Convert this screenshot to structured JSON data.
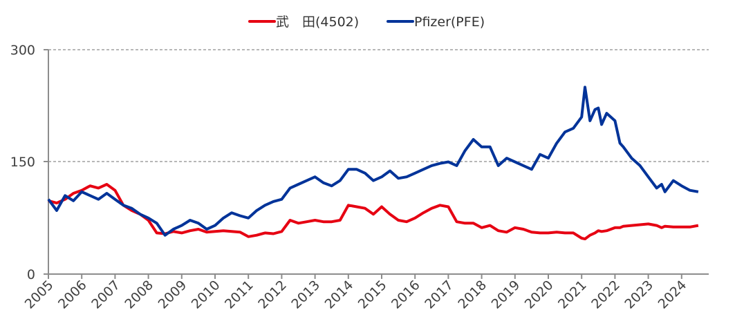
{
  "chart_data": {
    "type": "line",
    "title": "",
    "xlabel": "",
    "ylabel": "",
    "ylim": [
      0,
      300
    ],
    "yticks": [
      0,
      150,
      300
    ],
    "xticks": [
      "2005",
      "2006",
      "2007",
      "2008",
      "2009",
      "2010",
      "2011",
      "2012",
      "2013",
      "2014",
      "2015",
      "2016",
      "2017",
      "2018",
      "2019",
      "2020",
      "2021",
      "2022",
      "2023",
      "2024"
    ],
    "grid": "horizontal dashed at 150 and 300",
    "legend_position": "top-center",
    "colors": {
      "takeda": "#e60012",
      "pfizer": "#003399",
      "axis": "#8c8c8c",
      "grid": "#8c8c8c"
    },
    "x": [
      2005.0,
      2005.25,
      2005.5,
      2005.75,
      2006.0,
      2006.25,
      2006.5,
      2006.75,
      2007.0,
      2007.25,
      2007.5,
      2007.75,
      2008.0,
      2008.25,
      2008.5,
      2008.75,
      2009.0,
      2009.25,
      2009.5,
      2009.75,
      2010.0,
      2010.25,
      2010.5,
      2010.75,
      2011.0,
      2011.25,
      2011.5,
      2011.75,
      2012.0,
      2012.25,
      2012.5,
      2012.75,
      2013.0,
      2013.25,
      2013.5,
      2013.75,
      2014.0,
      2014.25,
      2014.5,
      2014.75,
      2015.0,
      2015.25,
      2015.5,
      2015.75,
      2016.0,
      2016.25,
      2016.5,
      2016.75,
      2017.0,
      2017.25,
      2017.5,
      2017.75,
      2018.0,
      2018.25,
      2018.5,
      2018.75,
      2019.0,
      2019.25,
      2019.5,
      2019.75,
      2020.0,
      2020.25,
      2020.5,
      2020.75,
      2021.0,
      2021.1,
      2021.25,
      2021.4,
      2021.5,
      2021.6,
      2021.75,
      2022.0,
      2022.15,
      2022.25,
      2022.5,
      2022.75,
      2023.0,
      2023.25,
      2023.4,
      2023.5,
      2023.75,
      2024.0,
      2024.25,
      2024.5
    ],
    "series": [
      {
        "name": "武　田(4502)",
        "values": [
          98,
          95,
          100,
          108,
          112,
          118,
          115,
          120,
          112,
          92,
          85,
          80,
          72,
          55,
          54,
          57,
          55,
          58,
          60,
          56,
          57,
          58,
          57,
          56,
          50,
          52,
          55,
          54,
          57,
          72,
          68,
          70,
          72,
          70,
          70,
          72,
          92,
          90,
          88,
          80,
          90,
          80,
          72,
          70,
          75,
          82,
          88,
          92,
          90,
          70,
          68,
          68,
          62,
          65,
          58,
          56,
          62,
          60,
          56,
          55,
          55,
          56,
          55,
          55,
          48,
          47,
          52,
          55,
          58,
          57,
          58,
          62,
          62,
          64,
          65,
          66,
          67,
          65,
          62,
          64,
          63,
          63,
          63,
          65
        ]
      },
      {
        "name": "Pfizer(PFE)",
        "values": [
          100,
          85,
          105,
          98,
          110,
          105,
          100,
          108,
          100,
          92,
          88,
          80,
          75,
          68,
          52,
          60,
          65,
          72,
          68,
          60,
          65,
          75,
          82,
          78,
          75,
          85,
          92,
          97,
          100,
          115,
          120,
          125,
          130,
          122,
          118,
          125,
          140,
          140,
          135,
          125,
          130,
          138,
          128,
          130,
          135,
          140,
          145,
          148,
          150,
          145,
          165,
          180,
          170,
          170,
          145,
          155,
          150,
          145,
          140,
          160,
          155,
          175,
          190,
          195,
          210,
          250,
          205,
          220,
          222,
          200,
          215,
          205,
          175,
          170,
          155,
          145,
          130,
          115,
          120,
          110,
          125,
          118,
          112,
          110
        ]
      }
    ]
  },
  "legend": {
    "items": [
      {
        "label": "武　田(4502)",
        "color": "#e60012"
      },
      {
        "label": "Pfizer(PFE)",
        "color": "#003399"
      }
    ]
  },
  "axes": {
    "y_labels": [
      "0",
      "150",
      "300"
    ],
    "x_labels": [
      "2005",
      "2006",
      "2007",
      "2008",
      "2009",
      "2010",
      "2011",
      "2012",
      "2013",
      "2014",
      "2015",
      "2016",
      "2017",
      "2018",
      "2019",
      "2020",
      "2021",
      "2022",
      "2023",
      "2024"
    ]
  }
}
